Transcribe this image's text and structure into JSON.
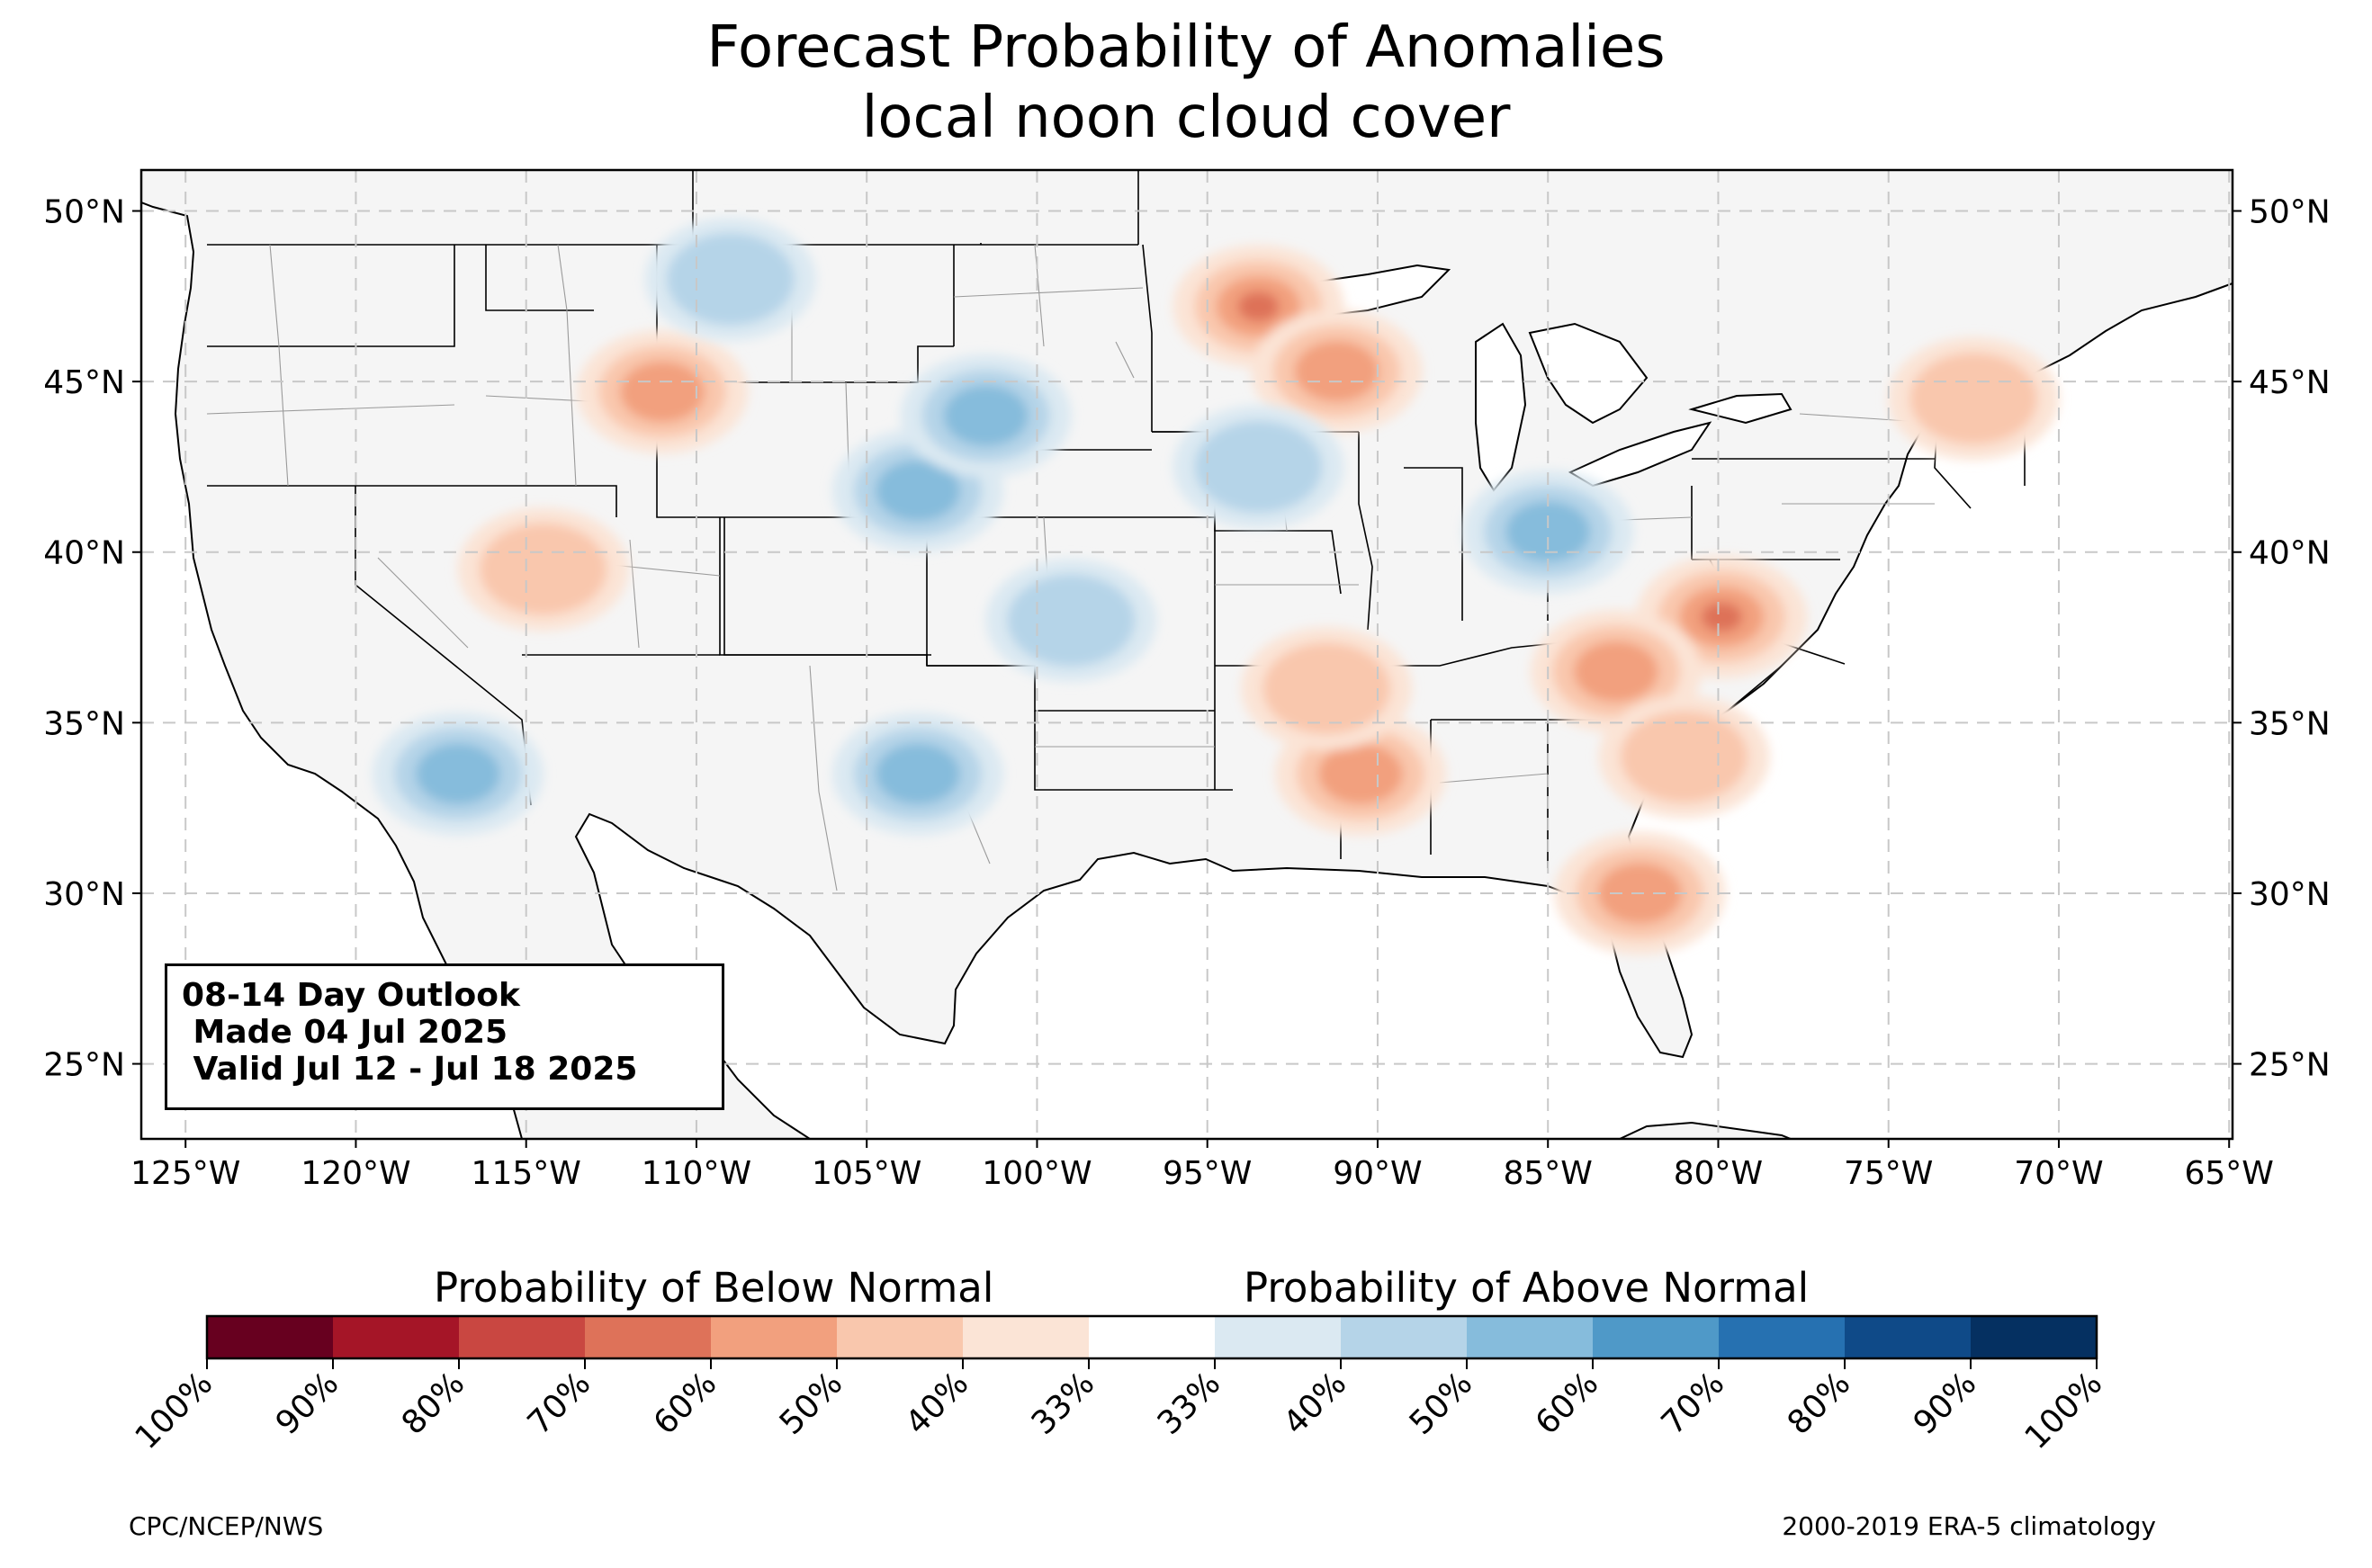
{
  "title": {
    "line1": "Forecast Probability of Anomalies",
    "line2": "local noon cloud cover"
  },
  "map": {
    "lat_ticks": [
      "50°N",
      "45°N",
      "40°N",
      "35°N",
      "30°N",
      "25°N"
    ],
    "lat_values": [
      50,
      45,
      40,
      35,
      30,
      25
    ],
    "lon_ticks": [
      "125°W",
      "120°W",
      "115°W",
      "110°W",
      "105°W",
      "100°W",
      "95°W",
      "90°W",
      "85°W",
      "80°W",
      "75°W",
      "70°W",
      "65°W"
    ],
    "lon_values": [
      -125,
      -120,
      -115,
      -110,
      -105,
      -100,
      -95,
      -90,
      -85,
      -80,
      -75,
      -70,
      -65
    ],
    "lon_range": [
      -126.3,
      -64.9
    ],
    "lat_range": [
      22.8,
      51.2
    ],
    "gridlines": true,
    "land_color": "#f5f5f5",
    "below_normal_regions": [
      {
        "name": "Minnesota / Lake Superior",
        "lon": -93.5,
        "lat": 47.2,
        "level": 4
      },
      {
        "name": "Wisconsin",
        "lon": -91.2,
        "lat": 45.3,
        "level": 3
      },
      {
        "name": "Montana",
        "lon": -111.0,
        "lat": 44.7,
        "level": 3
      },
      {
        "name": "New York / New England",
        "lon": -72.5,
        "lat": 44.5,
        "level": 2
      },
      {
        "name": "Virginia / West Virginia",
        "lon": -79.9,
        "lat": 38.1,
        "level": 4
      },
      {
        "name": "Tennessee / Kentucky",
        "lon": -83.0,
        "lat": 36.5,
        "level": 3
      },
      {
        "name": "Carolinas",
        "lon": -81.0,
        "lat": 34.0,
        "level": 2
      },
      {
        "name": "Mississippi / Louisiana",
        "lon": -90.5,
        "lat": 33.5,
        "level": 3
      },
      {
        "name": "Arkansas / Missouri",
        "lon": -91.5,
        "lat": 36.0,
        "level": 2
      },
      {
        "name": "Georgia / Florida",
        "lon": -82.3,
        "lat": 30.0,
        "level": 3
      },
      {
        "name": "Great Basin",
        "lon": -114.5,
        "lat": 39.5,
        "level": 2
      }
    ],
    "above_normal_regions": [
      {
        "name": "Nebraska / Wyoming",
        "lon": -103.5,
        "lat": 41.8,
        "level": 3
      },
      {
        "name": "South Dakota",
        "lon": -101.5,
        "lat": 44.0,
        "level": 3
      },
      {
        "name": "Indiana / Ohio",
        "lon": -85.0,
        "lat": 40.6,
        "level": 3
      },
      {
        "name": "Iowa / Illinois",
        "lon": -93.5,
        "lat": 42.5,
        "level": 2
      },
      {
        "name": "Kansas / Oklahoma",
        "lon": -99.0,
        "lat": 38.0,
        "level": 2
      },
      {
        "name": "New Mexico / West Texas",
        "lon": -103.5,
        "lat": 33.5,
        "level": 3
      },
      {
        "name": "Southern California",
        "lon": -117.0,
        "lat": 33.5,
        "level": 3
      },
      {
        "name": "North Dakota / Montana",
        "lon": -109.0,
        "lat": 48.0,
        "level": 2
      }
    ]
  },
  "outlook": {
    "line1": "08-14 Day Outlook",
    "line2": " Made 04 Jul 2025",
    "line3": " Valid Jul 12 - Jul 18 2025"
  },
  "legend": {
    "below_label": "Probability of Below Normal",
    "above_label": "Probability of Above Normal",
    "tick_labels": [
      "100%",
      "90%",
      "80%",
      "70%",
      "60%",
      "50%",
      "40%",
      "33%",
      "33%",
      "40%",
      "50%",
      "60%",
      "70%",
      "80%",
      "90%",
      "100%"
    ],
    "colors": [
      "#67001f",
      "#a51527",
      "#c94741",
      "#de7259",
      "#f2a07e",
      "#f9c7ad",
      "#fbe4d6",
      "#ffffff",
      "#dbe9f2",
      "#b5d4e8",
      "#86bcdc",
      "#4f99c8",
      "#2671b1",
      "#0f4a88",
      "#053061"
    ]
  },
  "footer": {
    "left": "CPC/NCEP/NWS",
    "right": "2000-2019 ERA-5 climatology"
  }
}
